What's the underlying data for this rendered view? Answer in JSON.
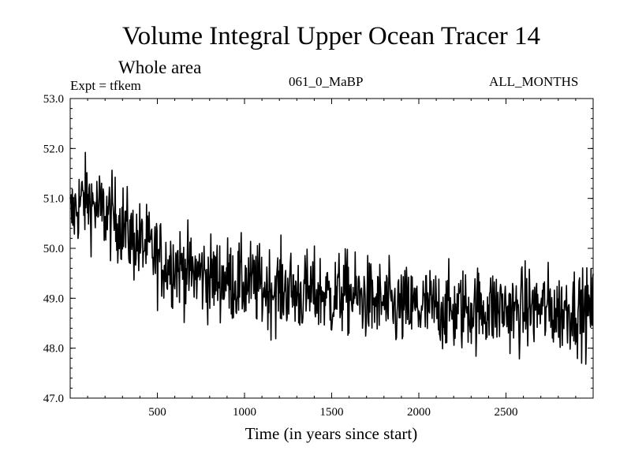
{
  "header": {
    "title": "Volume Integral Upper Ocean Tracer 14",
    "subtitle": "Whole area",
    "experiment": "Expt = tfkem",
    "period": "061_0_MaBP",
    "months": "ALL_MONTHS"
  },
  "chart_data": {
    "type": "line",
    "title": "Volume Integral Upper Ocean Tracer 14",
    "subtitle": "Whole area",
    "xlabel": "Time (in years since start)",
    "ylabel": "",
    "xlim": [
      0,
      3000
    ],
    "ylim": [
      47.0,
      53.0
    ],
    "xticks": [
      500,
      1000,
      1500,
      2000,
      2500
    ],
    "yticks": [
      47.0,
      48.0,
      49.0,
      50.0,
      51.0,
      52.0,
      53.0
    ],
    "ytick_labels": [
      "47.0",
      "48.0",
      "49.0",
      "50.0",
      "51.0",
      "52.0",
      "53.0"
    ],
    "xtick_labels": [
      "500",
      "1000",
      "1500",
      "2000",
      "2500"
    ],
    "grid": false,
    "legend": "none",
    "series": [
      {
        "color": "#000000",
        "x": [
          0,
          50,
          100,
          150,
          200,
          250,
          300,
          350,
          400,
          450,
          500,
          550,
          600,
          650,
          700,
          750,
          800,
          850,
          900,
          950,
          1000,
          1050,
          1100,
          1150,
          1200,
          1250,
          1300,
          1350,
          1400,
          1450,
          1500,
          1550,
          1600,
          1650,
          1700,
          1750,
          1800,
          1850,
          1900,
          1950,
          2000,
          2050,
          2100,
          2150,
          2200,
          2250,
          2300,
          2350,
          2400,
          2450,
          2500,
          2550,
          2600,
          2650,
          2700,
          2750,
          2800,
          2850,
          2900,
          2950,
          3000
        ],
        "y": [
          50.6,
          50.9,
          51.0,
          50.8,
          50.7,
          50.6,
          50.5,
          50.2,
          50.1,
          50.0,
          49.8,
          49.7,
          49.7,
          49.6,
          49.5,
          49.5,
          49.4,
          49.4,
          49.4,
          49.3,
          49.3,
          49.3,
          49.2,
          49.2,
          49.2,
          49.2,
          49.1,
          49.1,
          49.1,
          49.1,
          49.0,
          49.1,
          49.1,
          49.0,
          49.0,
          48.9,
          48.9,
          48.8,
          48.8,
          48.8,
          48.8,
          48.8,
          48.8,
          48.8,
          48.7,
          48.8,
          48.8,
          48.8,
          48.8,
          48.8,
          48.8,
          48.7,
          48.8,
          48.8,
          48.8,
          48.8,
          48.7,
          48.8,
          48.8,
          48.7,
          48.8
        ]
      }
    ]
  }
}
